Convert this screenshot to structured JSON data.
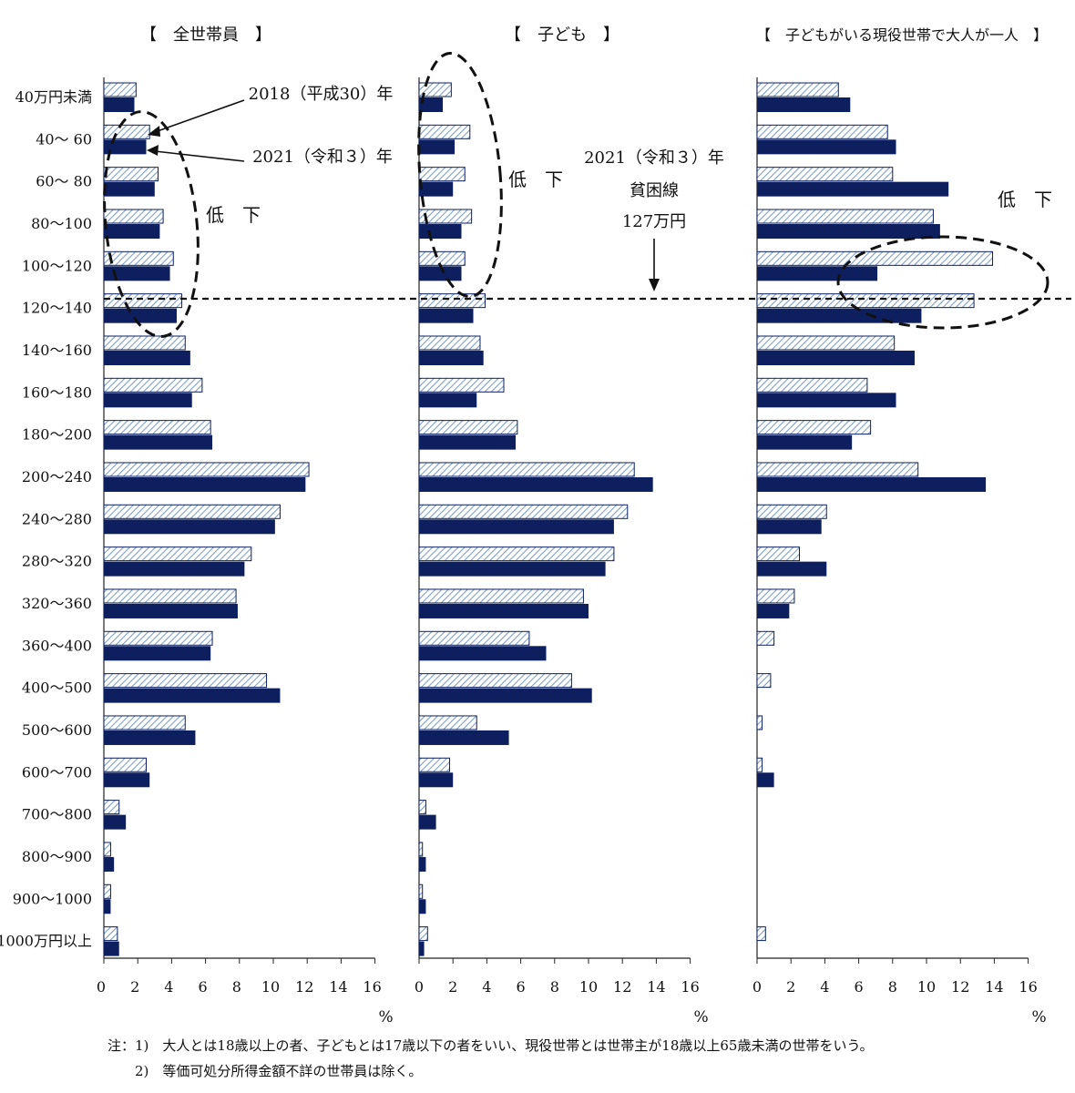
{
  "chart_data": {
    "type": "bar",
    "orientation": "horizontal",
    "categories": [
      "40万円未満",
      "40～ 60",
      "60～ 80",
      "80～100",
      "100～120",
      "120～140",
      "140～160",
      "160～180",
      "180～200",
      "200～240",
      "240～280",
      "280～320",
      "320～360",
      "360～400",
      "400～500",
      "500～600",
      "600～700",
      "700～800",
      "800～900",
      "900～1000",
      "1000万円以上"
    ],
    "xlim": [
      0,
      16
    ],
    "xticks": [
      "0",
      "2",
      "4",
      "6",
      "8",
      "10",
      "12",
      "14",
      "16"
    ],
    "x_unit": "%",
    "panels": [
      {
        "title": "【　全世帯員　】",
        "series": [
          {
            "name": "2018（平成30）年",
            "style": "hatched",
            "values": [
              1.9,
              2.7,
              3.2,
              3.5,
              4.1,
              4.6,
              4.8,
              5.8,
              6.3,
              12.1,
              10.4,
              8.7,
              7.8,
              6.4,
              9.6,
              4.8,
              2.5,
              0.9,
              0.4,
              0.4,
              0.8
            ]
          },
          {
            "name": "2021（令和３）年",
            "style": "solid",
            "values": [
              1.8,
              2.5,
              3.0,
              3.3,
              3.9,
              4.3,
              5.1,
              5.2,
              6.4,
              11.9,
              10.1,
              8.3,
              7.9,
              6.3,
              10.4,
              5.4,
              2.7,
              1.3,
              0.6,
              0.4,
              0.9
            ]
          }
        ],
        "annotation": "低　下"
      },
      {
        "title": "【　子ども　】",
        "series": [
          {
            "name": "2018（平成30）年",
            "style": "hatched",
            "values": [
              1.9,
              3.0,
              2.7,
              3.1,
              2.7,
              3.9,
              3.6,
              5.0,
              5.8,
              12.7,
              12.3,
              11.5,
              9.7,
              6.5,
              9.0,
              3.4,
              1.8,
              0.4,
              0.2,
              0.2,
              0.5
            ]
          },
          {
            "name": "2021（令和３）年",
            "style": "solid",
            "values": [
              1.4,
              2.1,
              2.0,
              2.5,
              2.5,
              3.2,
              3.8,
              3.4,
              5.7,
              13.8,
              11.5,
              11.0,
              10.0,
              7.5,
              10.2,
              5.3,
              2.0,
              1.0,
              0.4,
              0.4,
              0.3
            ]
          }
        ],
        "annotation": "低　下"
      },
      {
        "title": "【　子どもがいる現役世帯で大人が一人　】",
        "series": [
          {
            "name": "2018（平成30）年",
            "style": "hatched",
            "values": [
              4.8,
              7.7,
              8.0,
              10.4,
              13.9,
              12.8,
              8.1,
              6.5,
              6.7,
              9.5,
              4.1,
              2.5,
              2.2,
              1.0,
              0.8,
              0.3,
              0.3,
              0,
              0,
              0,
              0.5
            ]
          },
          {
            "name": "2021（令和３）年",
            "style": "solid",
            "values": [
              5.5,
              8.2,
              11.3,
              10.8,
              7.1,
              9.7,
              9.3,
              8.2,
              5.6,
              13.5,
              3.8,
              4.1,
              1.9,
              0,
              0,
              0,
              1.0,
              0,
              0,
              0,
              0
            ]
          }
        ],
        "annotation": "低　下"
      }
    ],
    "legend_callouts": [
      "2018（平成30）年",
      "2021（令和３）年"
    ],
    "poverty_line_label": [
      "2021（令和３）年",
      "貧困線",
      "127万円"
    ]
  },
  "notes": [
    "注：1)　大人とは18歳以上の者、子どもとは17歳以下の者をいい、現役世帯とは世帯主が18歳以上65歳未満の世帯をいう。",
    "2)　等価可処分所得金額不詳の世帯員は除く。"
  ],
  "colors": {
    "solid": "#0d1f5e",
    "hatch_line": "#7f9fc4",
    "hatch_bg": "#ffffff",
    "edge": "#0d1f5e"
  }
}
